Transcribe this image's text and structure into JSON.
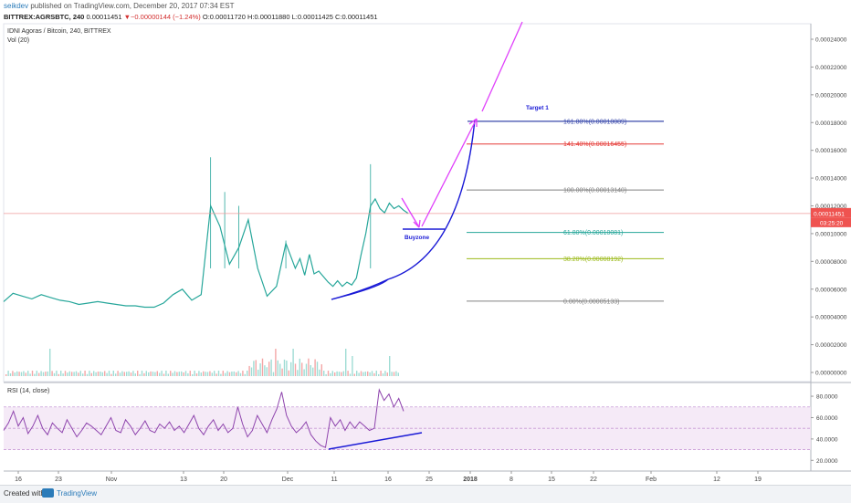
{
  "header": {
    "author": "seikdev",
    "published": "published on TradingView.com, December 20, 2017 07:34 EST",
    "symbol_line": "BITTREX:AGRSBTC, 240",
    "last_close": "0.00011451",
    "change": "▼−0.00000144 (−1.24%)",
    "ohlc": "O:0.00011720 H:0.00011880 L:0.00011425 C:0.00011451"
  },
  "chart_data": [
    {
      "type": "line",
      "title": "IDNI Agoras / Bitcoin, 240, BITTREX",
      "subtitle": "Vol (20)",
      "y_ticks": [
        "0.00024000",
        "0.00022000",
        "0.00020000",
        "0.00018000",
        "0.00016000",
        "0.00014000",
        "0.00012000",
        "0.00010000",
        "0.00008000",
        "0.00006000",
        "0.00004000",
        "0.00002000",
        "0.00000000"
      ],
      "ylim": [
        0,
        0.00025
      ],
      "x_ticks": [
        "16",
        "23",
        "Nov",
        "13",
        "20",
        "Dec",
        "11",
        "16",
        "25",
        "2018",
        "8",
        "15",
        "22",
        "Feb",
        "12",
        "19"
      ],
      "price_series": {
        "x_days": [
          0,
          2,
          4,
          6,
          8,
          10,
          12,
          14,
          16,
          18,
          20,
          22,
          24,
          26,
          28,
          30,
          32,
          34,
          36,
          38,
          40,
          42,
          44,
          46,
          48,
          50,
          52,
          54,
          56,
          58,
          60,
          62,
          63,
          64,
          65,
          66,
          67,
          68,
          69,
          70,
          71,
          72,
          73,
          74,
          75,
          76,
          77,
          78,
          79,
          80,
          81,
          82,
          83,
          84,
          85,
          86
        ],
        "values": [
          5.1e-05,
          5.7e-05,
          5.5e-05,
          5.3e-05,
          5.6e-05,
          5.4e-05,
          5.2e-05,
          5.1e-05,
          4.9e-05,
          5e-05,
          5.1e-05,
          5e-05,
          4.9e-05,
          4.8e-05,
          4.8e-05,
          4.7e-05,
          4.7e-05,
          5e-05,
          5.6e-05,
          6e-05,
          5.2e-05,
          5.6e-05,
          0.00012,
          0.000105,
          7.8e-05,
          9e-05,
          0.00011,
          7.5e-05,
          5.5e-05,
          6.2e-05,
          9.3e-05,
          7.5e-05,
          8.2e-05,
          7e-05,
          8.5e-05,
          7.1e-05,
          7.3e-05,
          6.9e-05,
          6.5e-05,
          6.2e-05,
          6.6e-05,
          6.2e-05,
          6.5e-05,
          6.3e-05,
          6.8e-05,
          8.5e-05,
          0.0001,
          0.00012,
          0.000125,
          0.000118,
          0.000115,
          0.000122,
          0.000118,
          0.00012,
          0.000117,
          0.00011451
        ]
      },
      "last_price_label": "0.00011451",
      "countdown_label": "03:25:20",
      "fibonacci_levels": [
        {
          "label": "161.80%(0.00018089)",
          "value": 0.00018089,
          "color": "#3949ab"
        },
        {
          "label": "141.40%(0.00016455)",
          "value": 0.00016455,
          "color": "#e53935"
        },
        {
          "label": "100.00%(0.00013140)",
          "value": 0.0001314,
          "color": "#808080"
        },
        {
          "label": "61.80%(0.00010081)",
          "value": 0.00010081,
          "color": "#26a69a"
        },
        {
          "label": "38.20%(0.00008192)",
          "value": 8.192e-05,
          "color": "#9cba1a"
        },
        {
          "label": "0.00%(0.00005133)",
          "value": 5.133e-05,
          "color": "#808080"
        }
      ],
      "annotations": {
        "target": "Target 1",
        "buyzone": "Buyzone"
      },
      "colors": {
        "price": "#26a69a",
        "down": "#ef5350",
        "arrow": "#e040fb",
        "curve": "#1a1ad6"
      }
    },
    {
      "type": "line",
      "title": "RSI (14, close)",
      "y_ticks": [
        "80.0000",
        "60.0000",
        "40.0000",
        "20.0000"
      ],
      "ylim": [
        10,
        92
      ],
      "band": [
        30,
        70
      ],
      "values": [
        48,
        55,
        66,
        52,
        60,
        45,
        52,
        62,
        50,
        44,
        55,
        50,
        46,
        58,
        50,
        42,
        48,
        55,
        52,
        48,
        44,
        52,
        60,
        48,
        46,
        58,
        52,
        44,
        50,
        57,
        48,
        46,
        54,
        50,
        56,
        48,
        52,
        46,
        54,
        62,
        50,
        44,
        52,
        58,
        48,
        54,
        46,
        50,
        70,
        54,
        42,
        48,
        62,
        54,
        46,
        58,
        68,
        84,
        62,
        52,
        46,
        50,
        56,
        44,
        38,
        34,
        32,
        60,
        52,
        58,
        48,
        56,
        50,
        56,
        52,
        48,
        50,
        86,
        76,
        82,
        70,
        78,
        66
      ]
    }
  ]
}
